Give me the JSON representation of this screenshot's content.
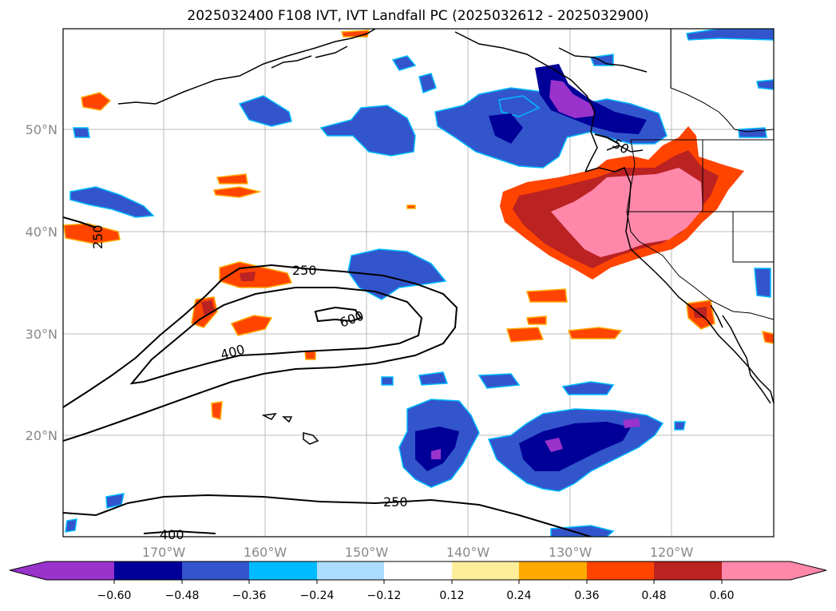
{
  "title": "2025032400 F108 IVT, IVT Landfall PC (2025032612 - 2025032900)",
  "lat_labels": [
    "50°N",
    "40°N",
    "30°N",
    "20°N"
  ],
  "lon_labels": [
    "170°W",
    "160°W",
    "150°W",
    "140°W",
    "130°W",
    "120°W"
  ],
  "contour_labels": [
    "250",
    "600",
    "400",
    "250",
    "400",
    "250",
    "50"
  ],
  "colorbar": {
    "ticks": [
      "−0.60",
      "−0.48",
      "−0.36",
      "−0.24",
      "−0.12",
      "0.12",
      "0.24",
      "0.36",
      "0.48",
      "0.60"
    ],
    "colors": [
      "#9933cc",
      "#000099",
      "#3355cc",
      "#00bbff",
      "#aaddff",
      "#ffffff",
      "#ffee99",
      "#ffaa00",
      "#ff4400",
      "#bb2222",
      "#ff88aa",
      "#ff88aa"
    ]
  },
  "colors": {
    "purple": "#9933cc",
    "navy": "#000099",
    "blue": "#3355cc",
    "cyan": "#00bbff",
    "lightblue": "#aaddff",
    "yellow": "#ffee99",
    "orange": "#ffaa00",
    "redorange": "#ff4400",
    "darkred": "#bb2222",
    "pink": "#ff88aa"
  }
}
